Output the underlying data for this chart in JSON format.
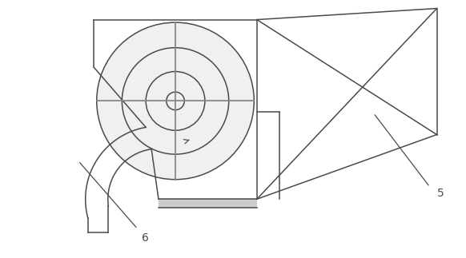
{
  "bg_color": "#ffffff",
  "line_color": "#4a4a4a",
  "fill_light": "#f0f0f0",
  "label_5": "5",
  "label_6": "6",
  "fig_width": 5.82,
  "fig_height": 3.23,
  "dpi": 100
}
